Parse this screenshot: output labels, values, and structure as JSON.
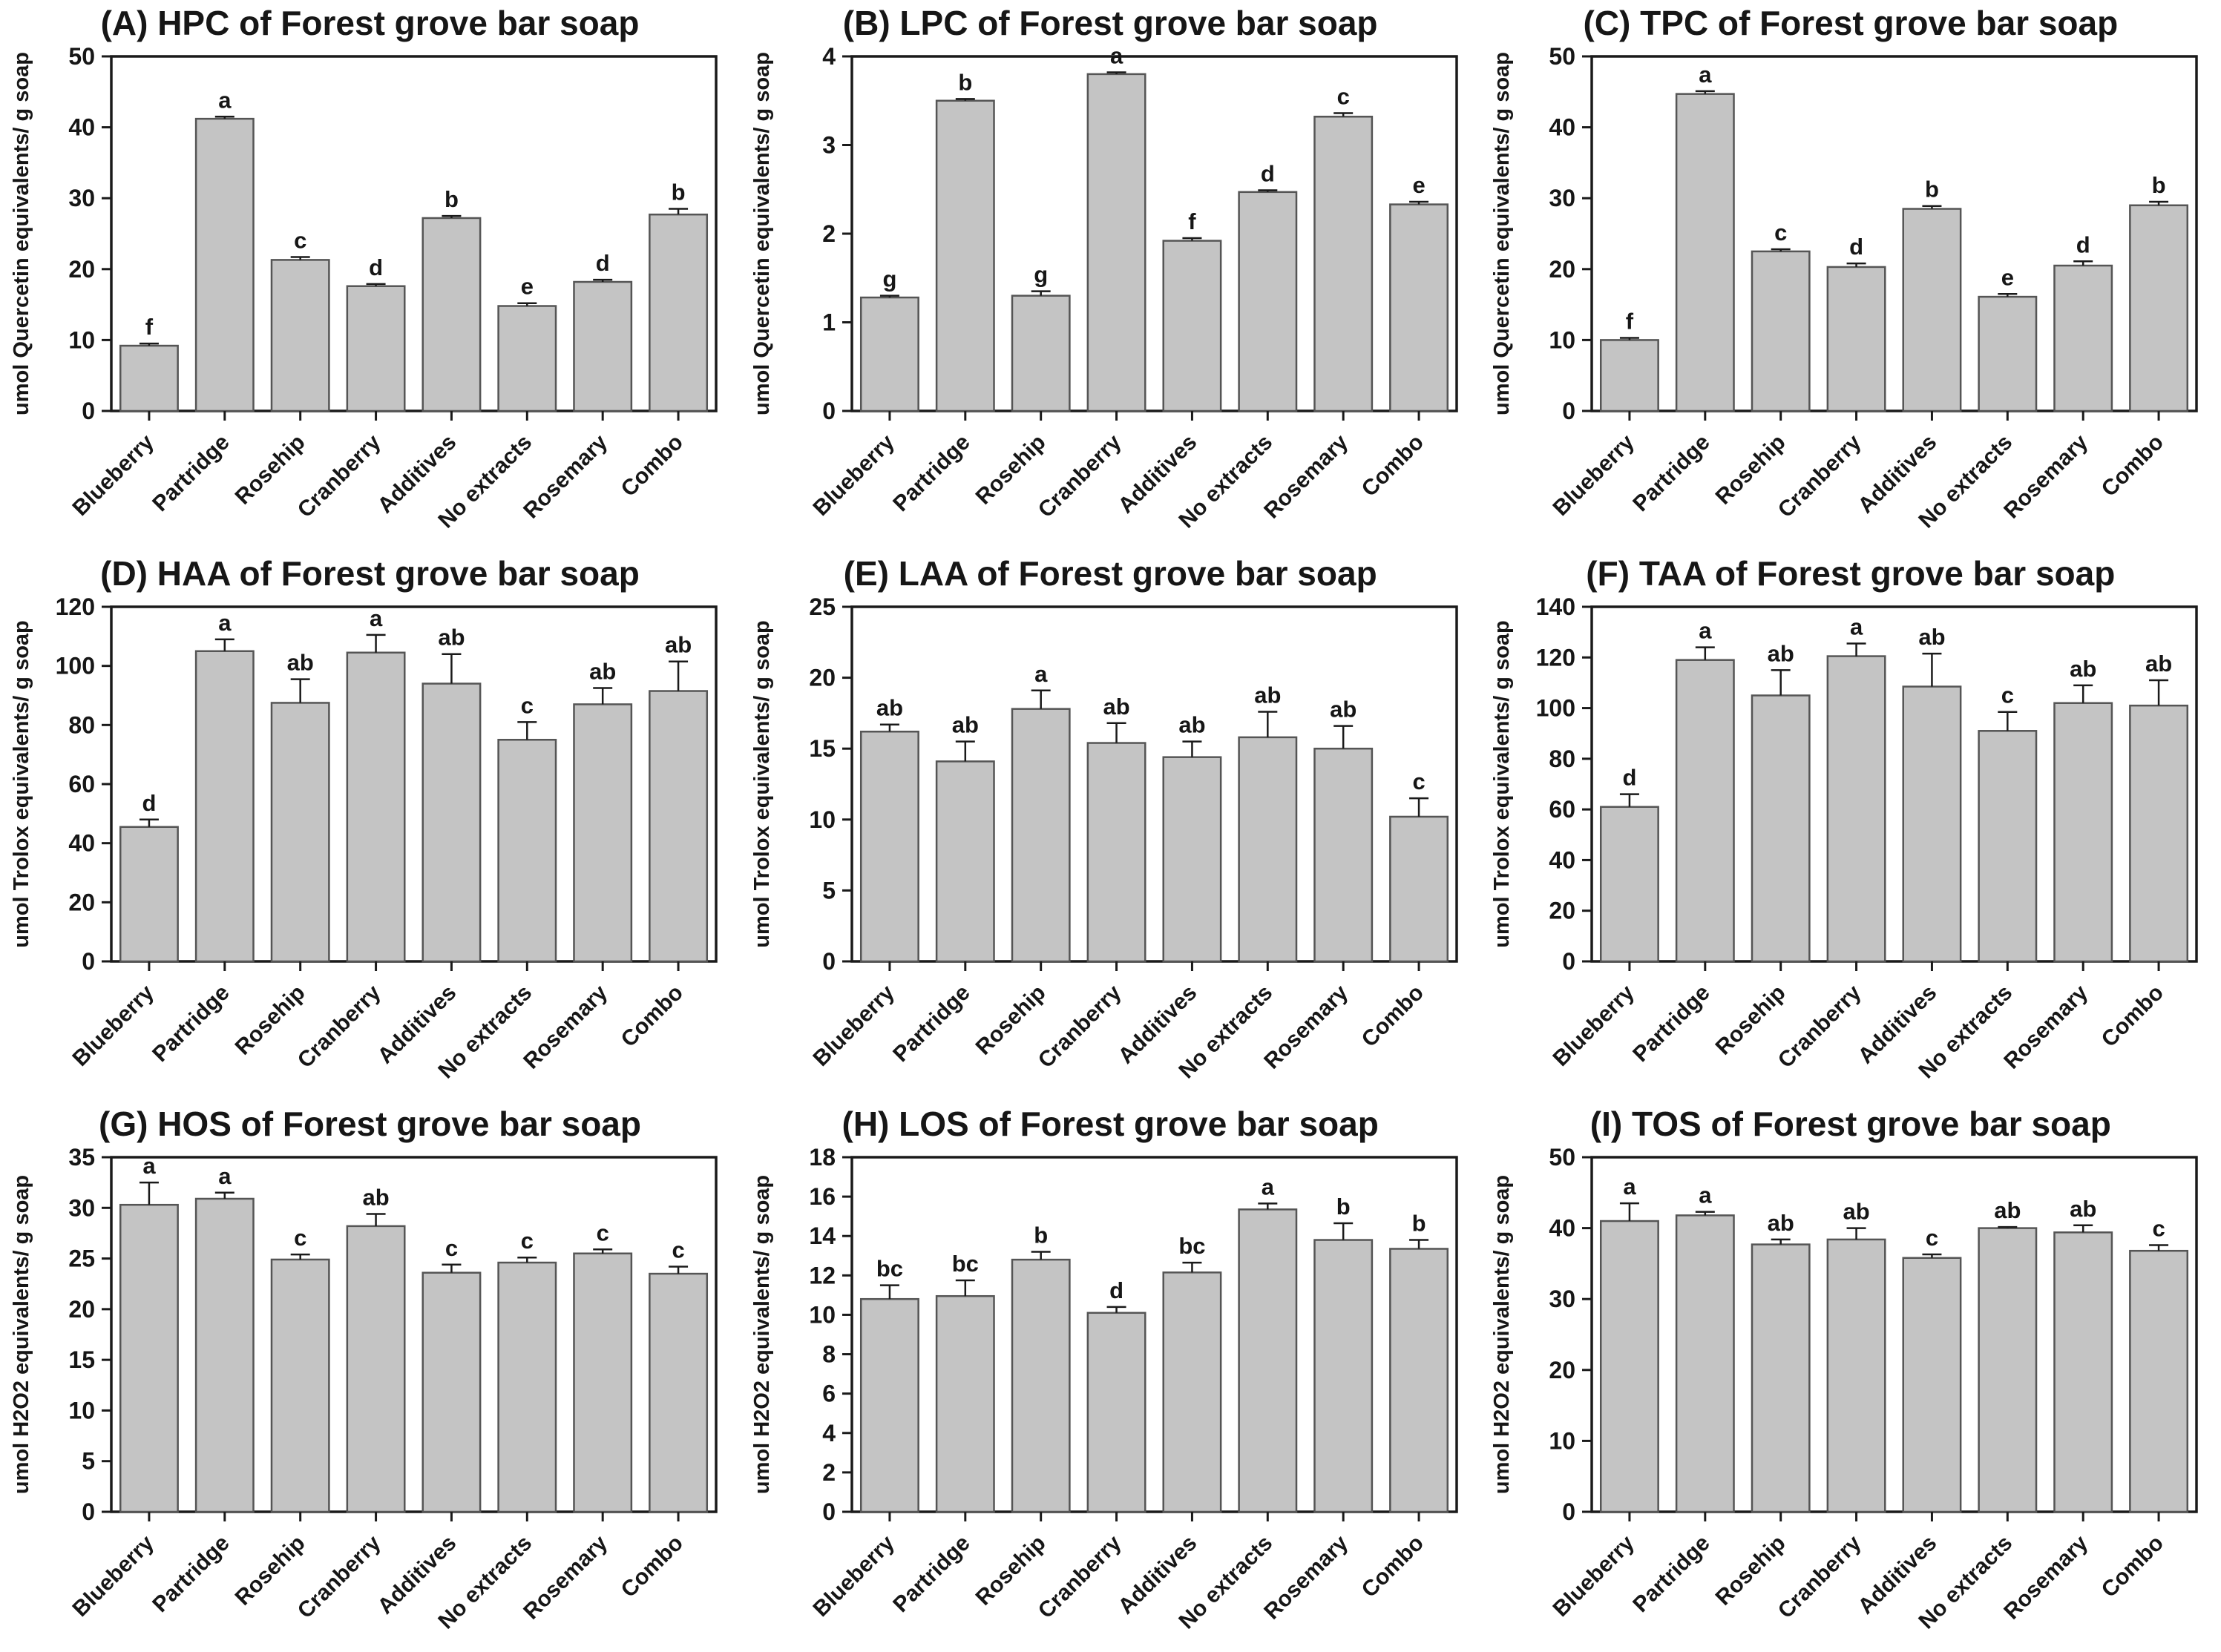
{
  "figure": {
    "background": "#ffffff",
    "bar_fill": "#c4c4c4",
    "bar_stroke": "#555555",
    "axis_color": "#1a1a1a",
    "text_color": "#161616"
  },
  "chart_data": [
    {
      "type": "bar",
      "panel": "A",
      "title": "(A) HPC of Forest grove bar soap",
      "ylabel": "umol Quercetin equivalents/ g soap",
      "xlabel": "",
      "ylim": [
        0,
        50
      ],
      "ytick_step": 10,
      "yticks": [
        0,
        10,
        20,
        30,
        40,
        50
      ],
      "grid": false,
      "legend": "none",
      "categories": [
        "Blueberry",
        "Partridge",
        "Rosehip",
        "Cranberry",
        "Additives",
        "No extracts",
        "Rosemary",
        "Combo"
      ],
      "values": [
        9.2,
        41.2,
        21.3,
        17.6,
        27.2,
        14.8,
        18.2,
        27.7
      ],
      "errors": [
        0.3,
        0.3,
        0.4,
        0.3,
        0.3,
        0.4,
        0.3,
        0.8
      ],
      "letters": [
        "f",
        "a",
        "c",
        "d",
        "b",
        "e",
        "d",
        "b"
      ]
    },
    {
      "type": "bar",
      "panel": "B",
      "title": "(B) LPC of Forest grove bar soap",
      "ylabel": "umol Quercetin equivalents/ g soap",
      "xlabel": "",
      "ylim": [
        0,
        4
      ],
      "ytick_step": 1,
      "yticks": [
        0,
        1,
        2,
        3,
        4
      ],
      "grid": false,
      "legend": "none",
      "categories": [
        "Blueberry",
        "Partridge",
        "Rosehip",
        "Cranberry",
        "Additives",
        "No extracts",
        "Rosemary",
        "Combo"
      ],
      "values": [
        1.28,
        3.5,
        1.3,
        3.8,
        1.92,
        2.47,
        3.32,
        2.33
      ],
      "errors": [
        0.02,
        0.02,
        0.05,
        0.02,
        0.03,
        0.02,
        0.04,
        0.03
      ],
      "letters": [
        "g",
        "b",
        "g",
        "a",
        "f",
        "d",
        "c",
        "e"
      ]
    },
    {
      "type": "bar",
      "panel": "C",
      "title": "(C) TPC of Forest grove bar soap",
      "ylabel": "umol Quercetin equivalents/ g soap",
      "xlabel": "",
      "ylim": [
        0,
        50
      ],
      "ytick_step": 10,
      "yticks": [
        0,
        10,
        20,
        30,
        40,
        50
      ],
      "grid": false,
      "legend": "none",
      "categories": [
        "Blueberry",
        "Partridge",
        "Rosehip",
        "Cranberry",
        "Additives",
        "No extracts",
        "Rosemary",
        "Combo"
      ],
      "values": [
        10.0,
        44.7,
        22.5,
        20.3,
        28.5,
        16.1,
        20.5,
        29.0
      ],
      "errors": [
        0.3,
        0.4,
        0.3,
        0.5,
        0.4,
        0.4,
        0.6,
        0.5
      ],
      "letters": [
        "f",
        "a",
        "c",
        "d",
        "b",
        "e",
        "d",
        "b"
      ]
    },
    {
      "type": "bar",
      "panel": "D",
      "title": "(D) HAA of Forest grove bar soap",
      "ylabel": "umol Trolox equivalents/ g soap",
      "xlabel": "",
      "ylim": [
        0,
        120
      ],
      "ytick_step": 20,
      "yticks": [
        0,
        20,
        40,
        60,
        80,
        100,
        120
      ],
      "grid": false,
      "legend": "none",
      "categories": [
        "Blueberry",
        "Partridge",
        "Rosehip",
        "Cranberry",
        "Additives",
        "No extracts",
        "Rosemary",
        "Combo"
      ],
      "values": [
        45.5,
        105,
        87.5,
        104.5,
        94,
        75,
        87,
        91.5
      ],
      "errors": [
        2.5,
        4,
        8,
        6,
        10,
        6,
        5.5,
        10
      ],
      "letters": [
        "d",
        "a",
        "ab",
        "a",
        "ab",
        "c",
        "ab",
        "ab"
      ]
    },
    {
      "type": "bar",
      "panel": "E",
      "title": "(E) LAA of Forest grove bar soap",
      "ylabel": "umol Trolox equivalents/ g soap",
      "xlabel": "",
      "ylim": [
        0,
        25
      ],
      "ytick_step": 5,
      "yticks": [
        0,
        5,
        10,
        15,
        20,
        25
      ],
      "grid": false,
      "legend": "none",
      "categories": [
        "Blueberry",
        "Partridge",
        "Rosehip",
        "Cranberry",
        "Additives",
        "No extracts",
        "Rosemary",
        "Combo"
      ],
      "values": [
        16.2,
        14.1,
        17.8,
        15.4,
        14.4,
        15.8,
        15.0,
        10.2
      ],
      "errors": [
        0.5,
        1.4,
        1.3,
        1.4,
        1.1,
        1.8,
        1.6,
        1.3
      ],
      "letters": [
        "ab",
        "ab",
        "a",
        "ab",
        "ab",
        "ab",
        "ab",
        "c"
      ]
    },
    {
      "type": "bar",
      "panel": "F",
      "title": "(F) TAA of Forest grove bar soap",
      "ylabel": "umol Trolox equivalents/ g soap",
      "xlabel": "",
      "ylim": [
        0,
        140
      ],
      "ytick_step": 20,
      "yticks": [
        0,
        20,
        40,
        60,
        80,
        100,
        120,
        140
      ],
      "grid": false,
      "legend": "none",
      "categories": [
        "Blueberry",
        "Partridge",
        "Rosehip",
        "Cranberry",
        "Additives",
        "No extracts",
        "Rosemary",
        "Combo"
      ],
      "values": [
        61,
        119,
        105,
        120.5,
        108.5,
        91,
        102,
        101
      ],
      "errors": [
        5,
        5,
        10,
        5,
        13,
        7.5,
        7,
        10
      ],
      "letters": [
        "d",
        "a",
        "ab",
        "a",
        "ab",
        "c",
        "ab",
        "ab"
      ]
    },
    {
      "type": "bar",
      "panel": "G",
      "title": "(G) HOS of Forest grove bar soap",
      "ylabel": "umol H2O2 equivalents/ g soap",
      "xlabel": "",
      "ylim": [
        0,
        35
      ],
      "ytick_step": 5,
      "yticks": [
        0,
        5,
        10,
        15,
        20,
        25,
        30,
        35
      ],
      "grid": false,
      "legend": "none",
      "categories": [
        "Blueberry",
        "Partridge",
        "Rosehip",
        "Cranberry",
        "Additives",
        "No extracts",
        "Rosemary",
        "Combo"
      ],
      "values": [
        30.3,
        30.9,
        24.9,
        28.2,
        23.6,
        24.6,
        25.5,
        23.5
      ],
      "errors": [
        2.2,
        0.6,
        0.5,
        1.2,
        0.8,
        0.5,
        0.4,
        0.7
      ],
      "letters": [
        "a",
        "a",
        "c",
        "ab",
        "c",
        "c",
        "c",
        "c"
      ]
    },
    {
      "type": "bar",
      "panel": "H",
      "title": "(H) LOS of Forest grove bar soap",
      "ylabel": "umol H2O2 equivalents/ g soap",
      "xlabel": "",
      "ylim": [
        0,
        18
      ],
      "ytick_step": 2,
      "yticks": [
        0,
        2,
        4,
        6,
        8,
        10,
        12,
        14,
        16,
        18
      ],
      "grid": false,
      "legend": "none",
      "categories": [
        "Blueberry",
        "Partridge",
        "Rosehip",
        "Cranberry",
        "Additives",
        "No extracts",
        "Rosemary",
        "Combo"
      ],
      "values": [
        10.8,
        10.95,
        12.8,
        10.1,
        12.15,
        15.35,
        13.8,
        13.35
      ],
      "errors": [
        0.7,
        0.8,
        0.4,
        0.3,
        0.5,
        0.3,
        0.85,
        0.45
      ],
      "letters": [
        "bc",
        "bc",
        "b",
        "d",
        "bc",
        "a",
        "b",
        "b"
      ]
    },
    {
      "type": "bar",
      "panel": "I",
      "title": "(I) TOS of Forest grove bar soap",
      "ylabel": "umol H2O2 equivalents/ g soap",
      "xlabel": "",
      "ylim": [
        0,
        50
      ],
      "ytick_step": 10,
      "yticks": [
        0,
        10,
        20,
        30,
        40,
        50
      ],
      "grid": false,
      "legend": "none",
      "categories": [
        "Blueberry",
        "Partridge",
        "Rosehip",
        "Cranberry",
        "Additives",
        "No extracts",
        "Rosemary",
        "Combo"
      ],
      "values": [
        41.0,
        41.8,
        37.7,
        38.4,
        35.8,
        40.0,
        39.4,
        36.8
      ],
      "errors": [
        2.5,
        0.5,
        0.7,
        1.6,
        0.5,
        0.15,
        1.0,
        0.8
      ],
      "letters": [
        "a",
        "a",
        "ab",
        "ab",
        "c",
        "ab",
        "ab",
        "c"
      ]
    }
  ]
}
